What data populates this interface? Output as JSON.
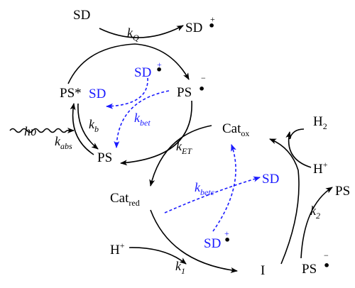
{
  "species": {
    "sd": "SD",
    "sd_cation_top": "SD",
    "ps_star": "PS*",
    "ps_anion_top": "PS",
    "ps_left": "PS",
    "cat_ox": "Cat",
    "cat_ox_sub": "ox",
    "cat_red": "Cat",
    "cat_red_sub": "red",
    "h2": "H",
    "h2_sub": "2",
    "h_plus_right": "H",
    "h_plus_bottom": "H",
    "ps_right": "PS",
    "ps_anion_bottom": "PS",
    "intermediate": "I",
    "sd_blue_upper_cation": "SD",
    "sd_blue_upper": "SD",
    "sd_blue_lower": "SD",
    "sd_blue_lower_cation": "SD",
    "light": "hυ"
  },
  "charges": {
    "plus": "+",
    "minus": "−",
    "radical": "•"
  },
  "rates": {
    "kq": "k",
    "kq_sub": "Q",
    "kb": "k",
    "kb_sub": "b",
    "kbet": "k",
    "kbet_sub": "bet",
    "kabs": "k",
    "kabs_sub": "abs",
    "ket": "k",
    "ket_sub": "ET",
    "kbetc": "k",
    "kbetc_sub": "betc",
    "k1": "k",
    "k1_sub": "1",
    "k2": "k",
    "k2_sub": "2"
  },
  "colors": {
    "main": "#000000",
    "back_electron_transfer": "#1a1aff"
  }
}
